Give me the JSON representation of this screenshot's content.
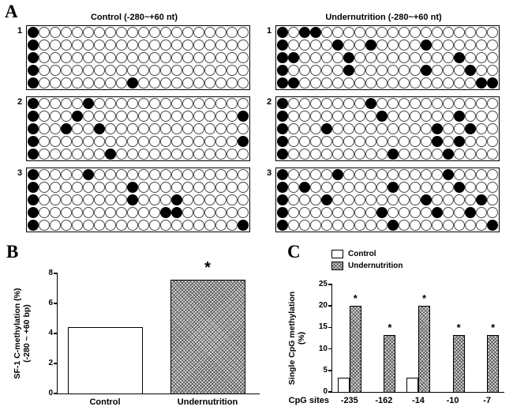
{
  "labels": {
    "a": "A",
    "b": "B",
    "c": "C"
  },
  "panel_a": {
    "cols": 20,
    "left": {
      "title": "Control (-280~+60 nt)",
      "groups": [
        {
          "label": "1",
          "rows": [
            [
              0
            ],
            [
              0
            ],
            [
              0
            ],
            [
              0
            ],
            [
              0,
              9
            ]
          ]
        },
        {
          "label": "2",
          "rows": [
            [
              0,
              5
            ],
            [
              0,
              4,
              19
            ],
            [
              0,
              3,
              6
            ],
            [
              0,
              19
            ],
            [
              0,
              7
            ]
          ]
        },
        {
          "label": "3",
          "rows": [
            [
              0,
              5
            ],
            [
              0,
              9
            ],
            [
              0,
              9,
              13
            ],
            [
              0,
              12,
              13
            ],
            [
              0,
              19
            ]
          ]
        }
      ]
    },
    "right": {
      "title": "Undernutrition (-280~+60 nt)",
      "groups": [
        {
          "label": "1",
          "rows": [
            [
              0,
              2,
              3
            ],
            [
              0,
              5,
              8,
              13
            ],
            [
              0,
              1,
              6,
              16
            ],
            [
              0,
              6,
              13,
              17
            ],
            [
              0,
              1,
              18,
              19
            ]
          ]
        },
        {
          "label": "2",
          "rows": [
            [
              0,
              8
            ],
            [
              0,
              9,
              16
            ],
            [
              0,
              4,
              14,
              17
            ],
            [
              0,
              14,
              16
            ],
            [
              0,
              10,
              15
            ]
          ]
        },
        {
          "label": "3",
          "rows": [
            [
              0,
              5,
              15
            ],
            [
              0,
              2,
              10,
              16
            ],
            [
              0,
              4,
              13,
              18
            ],
            [
              0,
              9,
              14,
              17
            ],
            [
              0,
              10,
              19
            ]
          ]
        }
      ]
    }
  },
  "chart_data": [
    {
      "id": "panel_b",
      "type": "bar",
      "categories": [
        "Control",
        "Undernutrition"
      ],
      "values": [
        4.4,
        7.6
      ],
      "ylabel_line1": "SF-1 C-methylation (%)",
      "ylabel_line2": "(-280 ~ +60 bp)",
      "ylim": [
        0,
        8
      ],
      "yticks": [
        0,
        2,
        4,
        6,
        8
      ],
      "significance": [
        {
          "category": "Undernutrition",
          "text": "*"
        }
      ]
    },
    {
      "id": "panel_c",
      "type": "bar",
      "categories": [
        "-235",
        "-162",
        "-14",
        "-10",
        "-7"
      ],
      "series": [
        {
          "name": "Control",
          "values": [
            3.3,
            0,
            3.3,
            0,
            0
          ]
        },
        {
          "name": "Undernutrition",
          "values": [
            20,
            13.3,
            20,
            13.3,
            13.3
          ]
        }
      ],
      "xlabel": "CpG sites",
      "ylabel_line1": "Single CpG methylation",
      "ylabel_line2": "(%)",
      "ylim": [
        0,
        25
      ],
      "yticks": [
        0,
        5,
        10,
        15,
        20,
        25
      ],
      "significance_marker": "*",
      "legend_position": "top-left"
    }
  ]
}
